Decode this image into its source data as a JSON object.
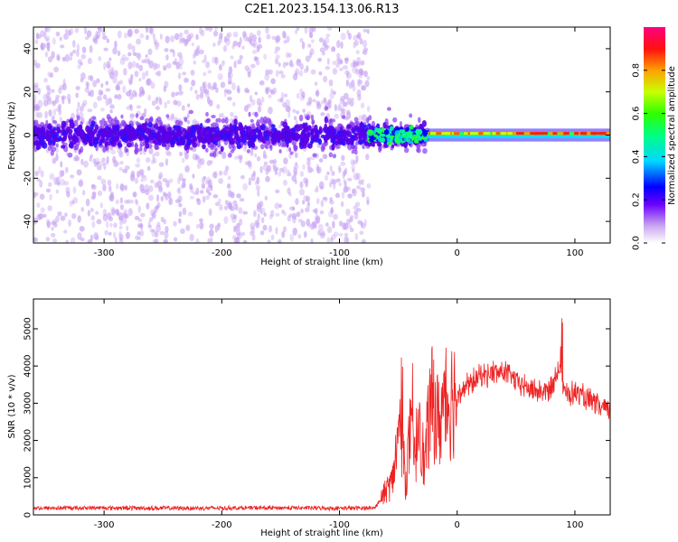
{
  "figure": {
    "title": "C2E1.2023.154.13.06.R13"
  },
  "chart_data": [
    {
      "type": "heatmap",
      "xlabel": "Height of straight line (km)",
      "ylabel": "Frequency (Hz)",
      "xlim": [
        -360,
        130
      ],
      "ylim": [
        -50,
        50
      ],
      "x_ticks": [
        -300,
        -200,
        -100,
        0,
        100
      ],
      "y_ticks": [
        -40,
        -20,
        0,
        20,
        40
      ],
      "grid": false,
      "colorscale": "rainbow",
      "regions": [
        {
          "x_range": [
            -360,
            -75
          ],
          "freq_spread_hz": 50,
          "core_band_hz": 8,
          "level": "low"
        },
        {
          "x_range": [
            -75,
            -25
          ],
          "freq_spread_hz": 12,
          "core_band_hz": 5,
          "level": "medium"
        },
        {
          "x_range": [
            -25,
            130
          ],
          "freq_spread_hz": 3,
          "core_band_hz": 1.5,
          "level": "high"
        }
      ],
      "colorbar": {
        "label": "Normalized spectral amplitude",
        "range": [
          0,
          1
        ],
        "ticks": [
          0.0,
          0.2,
          0.4,
          0.6,
          0.8
        ],
        "tick_labels": [
          "0.0",
          "0.2",
          "0.4",
          "0.6",
          "0.8"
        ]
      }
    },
    {
      "type": "line",
      "xlabel": "Height of straight line (km)",
      "ylabel": "SNR (10 * v/v)",
      "xlim": [
        -360,
        130
      ],
      "ylim": [
        0,
        5800
      ],
      "x_ticks": [
        -300,
        -200,
        -100,
        0,
        100
      ],
      "y_ticks": [
        0,
        1000,
        2000,
        3000,
        4000,
        5000
      ],
      "grid": false,
      "color": "#ee2222",
      "series": [
        {
          "x": [
            -360,
            -300,
            -250,
            -200,
            -150,
            -100,
            -70,
            -55,
            -48,
            -44,
            -40,
            -36,
            -32,
            -28,
            -24,
            -20,
            -16,
            -12,
            -8,
            -4,
            0,
            10,
            20,
            30,
            40,
            50,
            60,
            70,
            80,
            88,
            90,
            95,
            100,
            110,
            120,
            130
          ],
          "values": [
            180,
            190,
            180,
            185,
            190,
            180,
            190,
            900,
            2600,
            800,
            2200,
            1400,
            3000,
            1200,
            2600,
            3100,
            2400,
            2900,
            3000,
            3200,
            3300,
            3500,
            3750,
            3800,
            3850,
            3600,
            3400,
            3300,
            3350,
            4200,
            3400,
            3200,
            3300,
            3100,
            2900,
            2800
          ]
        }
      ]
    }
  ]
}
